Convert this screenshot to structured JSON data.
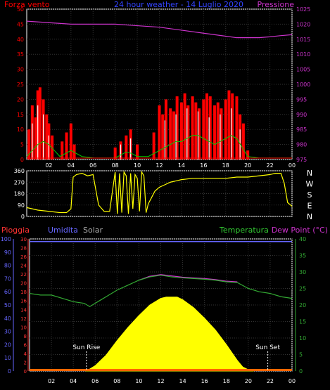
{
  "header": {
    "left_label": "Forza vento",
    "center_label": "24 hour weather - 14 Luglio 2020",
    "right_label": "Pressione"
  },
  "middle": {
    "compass_labels": [
      "N",
      "W",
      "S",
      "E",
      "N"
    ]
  },
  "bottom_header": {
    "pioggia": "Pioggia",
    "umidita": "Umidita",
    "solar": "Solar",
    "temperatura": "Temperatura",
    "dewpoint": "Dew Point (°C)"
  },
  "annotations": {
    "sunrise": "Sun Rise",
    "sunset": "Sun Set"
  },
  "colors": {
    "wind": "#ff0000",
    "gust": "#ffffff",
    "avg_wind": "#00cc00",
    "pressure": "#cc33cc",
    "direction": "#ffff00",
    "humidity": "#6666ff",
    "temperature": "#33aa33",
    "dewpoint": "#cc33cc",
    "solar": "#ffff00",
    "rain": "#ff3333",
    "axis": "#ffffff"
  },
  "chart_data": [
    {
      "type": "bar",
      "title": "24 hour weather - 14 Luglio 2020",
      "xlabel": "",
      "x_ticks": [
        "02",
        "04",
        "06",
        "08",
        "10",
        "12",
        "14",
        "16",
        "18",
        "20",
        "22",
        "00"
      ],
      "y_left_ticks": [
        "0",
        "5",
        "10",
        "15",
        "20",
        "25",
        "30",
        "35",
        "40",
        "45",
        "50"
      ],
      "y_right_ticks": [
        "975",
        "980",
        "985",
        "990",
        "995",
        "1000",
        "1005",
        "1010",
        "1015",
        "1020",
        "1025"
      ],
      "ylim": [
        0,
        50
      ],
      "y2lim": [
        975,
        1025
      ],
      "series": [
        {
          "name": "Forza vento",
          "hours": [
            0.2,
            0.5,
            0.8,
            1.0,
            1.2,
            1.5,
            1.8,
            2.0,
            2.3,
            3.2,
            3.6,
            4.0,
            4.3,
            8.0,
            8.5,
            9.0,
            9.4,
            10.0,
            11.5,
            12.0,
            12.3,
            12.6,
            13.0,
            13.3,
            13.6,
            14.0,
            14.3,
            14.6,
            15.0,
            15.3,
            15.6,
            16.0,
            16.3,
            16.6,
            17.0,
            17.3,
            17.6,
            18.0,
            18.3,
            18.6,
            19.0,
            19.3,
            19.6,
            20.0
          ],
          "values": [
            10,
            18,
            14,
            23,
            24,
            20,
            15,
            12,
            8,
            6,
            9,
            12,
            5,
            4,
            6,
            8,
            10,
            5,
            9,
            18,
            15,
            20,
            17,
            16,
            21,
            19,
            22,
            18,
            21,
            19,
            17,
            20,
            22,
            21,
            18,
            19,
            17,
            20,
            23,
            22,
            21,
            15,
            12,
            3
          ]
        },
        {
          "name": "Raffica",
          "hours": [
            0.5,
            1.0,
            1.5,
            2.0,
            8.5,
            9.4,
            12.5,
            13.5,
            14.5,
            15.5,
            16.5,
            17.5,
            18.5,
            19.3
          ],
          "values": [
            12,
            18,
            15,
            8,
            5,
            7,
            13,
            15,
            17,
            16,
            14,
            15,
            17,
            10
          ]
        },
        {
          "name": "Vento medio",
          "hours": [
            0,
            0.5,
            1,
            1.5,
            2,
            2.5,
            3,
            3.5,
            4,
            4.5,
            5,
            6,
            7,
            8,
            8.5,
            9,
            9.5,
            10,
            11,
            12,
            12.5,
            13,
            13.5,
            14,
            14.5,
            15,
            15.5,
            16,
            16.5,
            17,
            17.5,
            18,
            18.5,
            19,
            19.5,
            20,
            21,
            22,
            23,
            24
          ],
          "values": [
            1,
            3,
            5,
            6,
            5,
            3,
            1,
            2,
            3,
            2,
            1,
            0.5,
            0.5,
            0.5,
            1.5,
            2.5,
            2,
            1,
            1,
            3,
            4,
            5,
            6,
            6,
            7,
            8,
            8,
            7,
            6,
            5,
            6,
            7,
            8,
            7,
            4,
            1,
            0.5,
            0.5,
            0.5,
            0.5
          ]
        },
        {
          "name": "Pressione",
          "hours": [
            0,
            2,
            4,
            6,
            8,
            10,
            12,
            14,
            16,
            18,
            19,
            20,
            21,
            22,
            23,
            24
          ],
          "values": [
            1021,
            1020.5,
            1020,
            1020,
            1020,
            1019.5,
            1019,
            1018,
            1017,
            1016,
            1015.5,
            1015.5,
            1015.5,
            1015.8,
            1016.2,
            1016.5
          ]
        }
      ]
    },
    {
      "type": "line",
      "title": "",
      "xlabel": "",
      "y_ticks": [
        "0",
        "90",
        "180",
        "270",
        "360"
      ],
      "ylim": [
        0,
        360
      ],
      "series": [
        {
          "name": "",
          "hours": [
            0,
            1,
            2,
            3,
            3.6,
            4,
            4.2,
            4.5,
            5,
            5.5,
            6,
            6.5,
            7,
            7.5,
            8,
            8.2,
            8.4,
            8.6,
            8.8,
            9,
            9.2,
            9.4,
            9.6,
            9.8,
            10,
            10.2,
            10.4,
            10.6,
            10.8,
            11,
            11.3,
            11.6,
            12,
            12.5,
            13,
            14,
            15,
            16,
            17,
            18,
            19,
            20,
            21,
            22,
            22.5,
            23,
            23.3,
            23.6,
            24
          ],
          "values": [
            70,
            50,
            40,
            30,
            30,
            60,
            310,
            330,
            340,
            320,
            330,
            90,
            40,
            40,
            350,
            20,
            340,
            30,
            350,
            320,
            20,
            340,
            60,
            330,
            300,
            40,
            350,
            320,
            30,
            100,
            150,
            200,
            230,
            250,
            270,
            290,
            300,
            300,
            300,
            300,
            310,
            310,
            320,
            330,
            340,
            340,
            260,
            110,
            80
          ]
        }
      ]
    },
    {
      "type": "area",
      "title": "",
      "xlabel": "",
      "y_left_ticks": [
        "0",
        "10",
        "20",
        "30",
        "40",
        "50",
        "60",
        "70",
        "80",
        "90",
        "100"
      ],
      "y_left2_ticks": [
        "0",
        "2",
        "4",
        "6",
        "8",
        "10",
        "12",
        "14",
        "16",
        "18",
        "20",
        "22",
        "24",
        "26",
        "28",
        "30"
      ],
      "y_right_ticks": [
        "0",
        "5",
        "10",
        "15",
        "20",
        "25",
        "30",
        "35",
        "40"
      ],
      "ylim": [
        0,
        100
      ],
      "y2lim": [
        0,
        40
      ],
      "series": [
        {
          "name": "Solar",
          "hours": [
            5.2,
            6,
            7,
            8,
            9,
            10,
            11,
            12,
            12.5,
            13,
            13.5,
            14,
            15,
            16,
            17,
            18,
            19,
            19.5,
            20,
            20.5
          ],
          "values": [
            0,
            4,
            12,
            23,
            33,
            42,
            50,
            55,
            56,
            56,
            56,
            54,
            48,
            40,
            31,
            20,
            8,
            3,
            1,
            0
          ]
        },
        {
          "name": "Temperatura",
          "hours": [
            0,
            1,
            2,
            3,
            4,
            5,
            5.5,
            6,
            6.5,
            7,
            8,
            9,
            10,
            11,
            12,
            13,
            14,
            15,
            16,
            17,
            18,
            19,
            20,
            21,
            22,
            23,
            24
          ],
          "values": [
            23.5,
            23,
            23,
            22,
            21,
            20.5,
            19.5,
            20.5,
            21.5,
            22.5,
            24.5,
            26,
            27.5,
            28.5,
            29,
            28.5,
            28.2,
            28,
            27.8,
            27.5,
            27,
            26.8,
            25,
            24,
            23.5,
            22.5,
            22
          ]
        },
        {
          "name": "Dew Point",
          "hours": [
            10,
            11,
            12,
            13,
            14,
            15,
            16,
            17,
            18,
            19
          ],
          "values": [
            27.5,
            28.7,
            29.2,
            28.8,
            28.4,
            28.2,
            28,
            27.7,
            27.2,
            27
          ]
        },
        {
          "name": "Umidita",
          "hours": [
            0,
            24
          ],
          "values": [
            98,
            98
          ]
        },
        {
          "name": "Pioggia",
          "hours": [
            0,
            24
          ],
          "values": [
            0.3,
            0.3
          ]
        }
      ]
    }
  ]
}
